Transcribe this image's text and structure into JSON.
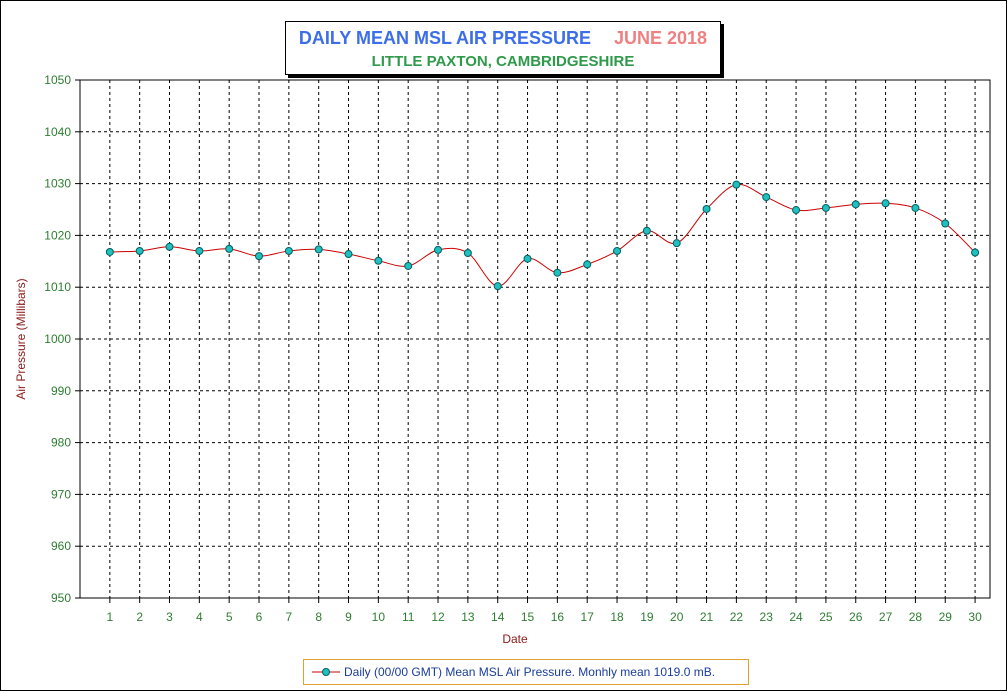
{
  "title": {
    "main": "DAILY MEAN MSL AIR PRESSURE",
    "month": "JUNE 2018",
    "subtitle": "LITTLE PAXTON, CAMBRIDGESHIRE"
  },
  "legend": {
    "label": "Daily (00/00 GMT) Mean MSL Air Pressure. Monhly mean 1019.0 mB."
  },
  "colors": {
    "line": "#cc0000",
    "marker_fill": "#20c0c0",
    "marker_stroke": "#006060",
    "axis_label": "#8b1a1a",
    "tick_label": "#2e7d32",
    "title_main": "#3b6ee8",
    "title_month": "#f08080",
    "subtitle": "#2e9a4a",
    "legend_border": "#e0a030",
    "legend_text": "#1a3d99"
  },
  "chart_data": {
    "type": "line",
    "xlabel": "Date",
    "ylabel": "Air Pressure (Millibars)",
    "ylim": [
      950,
      1050
    ],
    "y_ticks": [
      950,
      960,
      970,
      980,
      990,
      1000,
      1010,
      1020,
      1030,
      1040,
      1050
    ],
    "x": [
      1,
      2,
      3,
      4,
      5,
      6,
      7,
      8,
      9,
      10,
      11,
      12,
      13,
      14,
      15,
      16,
      17,
      18,
      19,
      20,
      21,
      22,
      23,
      24,
      25,
      26,
      27,
      28,
      29,
      30
    ],
    "x_ticks": [
      "1",
      "2",
      "3",
      "4",
      "5",
      "6",
      "7",
      "8",
      "9",
      "10",
      "11",
      "12",
      "13",
      "14",
      "15",
      "16",
      "17",
      "18",
      "19",
      "20",
      "21",
      "22",
      "23",
      "24",
      "25",
      "26",
      "27",
      "28",
      "29",
      "30"
    ],
    "grid": true,
    "legend_position": "bottom",
    "series": [
      {
        "name": "Daily (00/00 GMT) Mean MSL Air Pressure. Monhly mean 1019.0 mB.",
        "values": [
          1016.8,
          1017.0,
          1017.8,
          1017.0,
          1017.4,
          1016.0,
          1017.0,
          1017.3,
          1016.4,
          1015.1,
          1014.1,
          1017.2,
          1016.6,
          1010.2,
          1015.5,
          1012.8,
          1014.4,
          1017.0,
          1020.9,
          1018.5,
          1025.1,
          1029.8,
          1027.4,
          1024.9,
          1025.3,
          1026.0,
          1026.2,
          1025.3,
          1022.3,
          1016.7
        ]
      }
    ]
  }
}
